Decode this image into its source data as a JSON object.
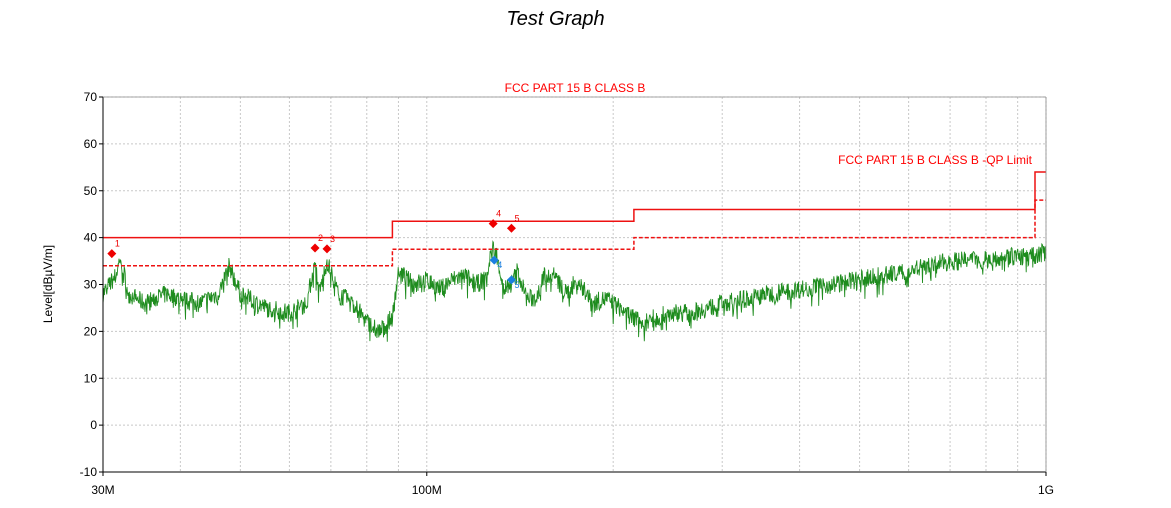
{
  "chart_data": {
    "type": "line",
    "title": "Test Graph",
    "subtitle": "FCC PART 15 B CLASS B",
    "ylabel": "Level[dBµV/m]",
    "xlabel": "",
    "x_scale": "log",
    "xlim": [
      30000000,
      1000000000
    ],
    "ylim": [
      -10,
      70
    ],
    "y_ticks": [
      70,
      60,
      50,
      40,
      30,
      20,
      10,
      0,
      -10
    ],
    "y_tick_labels": [
      "70",
      "60",
      "50",
      "40",
      "30",
      "20",
      "10",
      "0",
      "-10"
    ],
    "x_tick_labels": [
      {
        "value": 30000000,
        "label": "30M"
      },
      {
        "value": 100000000,
        "label": "100M"
      },
      {
        "value": 1000000000,
        "label": "1G"
      }
    ],
    "grid": true,
    "colors": {
      "limit": "#ee1111",
      "trace": "#1e8c1e",
      "peak_marker": "#ee0000",
      "qp_marker": "#1a7fe0",
      "grid": "#c8c8c8",
      "axis": "#000000"
    },
    "limits": [
      {
        "name": "FCC PART 15 B CLASS B -QP Limit",
        "style": "solid",
        "points": [
          [
            30000000,
            40
          ],
          [
            88000000,
            40
          ],
          [
            88000000,
            43.5
          ],
          [
            216000000,
            43.5
          ],
          [
            216000000,
            46
          ],
          [
            960000000,
            46
          ],
          [
            960000000,
            54
          ],
          [
            1000000000,
            54
          ]
        ]
      },
      {
        "name": "",
        "style": "dashed",
        "points": [
          [
            30000000,
            34
          ],
          [
            88000000,
            34
          ],
          [
            88000000,
            37.5
          ],
          [
            216000000,
            37.5
          ],
          [
            216000000,
            40
          ],
          [
            960000000,
            40
          ],
          [
            960000000,
            48
          ],
          [
            1000000000,
            48
          ]
        ]
      }
    ],
    "trace_envelope": [
      [
        30000000,
        28
      ],
      [
        31500000,
        32
      ],
      [
        32000000,
        36
      ],
      [
        33000000,
        28
      ],
      [
        35000000,
        26
      ],
      [
        38000000,
        28
      ],
      [
        40000000,
        27
      ],
      [
        43000000,
        26
      ],
      [
        46000000,
        28
      ],
      [
        48000000,
        34
      ],
      [
        50000000,
        28
      ],
      [
        55000000,
        25
      ],
      [
        60000000,
        24
      ],
      [
        64000000,
        26
      ],
      [
        66000000,
        35
      ],
      [
        67000000,
        28
      ],
      [
        69000000,
        35
      ],
      [
        72000000,
        28
      ],
      [
        76000000,
        26
      ],
      [
        80000000,
        22
      ],
      [
        84000000,
        20
      ],
      [
        88000000,
        23
      ],
      [
        90000000,
        33
      ],
      [
        95000000,
        30
      ],
      [
        100000000,
        31
      ],
      [
        105000000,
        29
      ],
      [
        110000000,
        31
      ],
      [
        115000000,
        32
      ],
      [
        120000000,
        30
      ],
      [
        124000000,
        31
      ],
      [
        128000000,
        38
      ],
      [
        130000000,
        36
      ],
      [
        133000000,
        29
      ],
      [
        137000000,
        30
      ],
      [
        140000000,
        33
      ],
      [
        145000000,
        27
      ],
      [
        150000000,
        27
      ],
      [
        155000000,
        32
      ],
      [
        160000000,
        32
      ],
      [
        168000000,
        28
      ],
      [
        175000000,
        31
      ],
      [
        185000000,
        26
      ],
      [
        195000000,
        27
      ],
      [
        205000000,
        25
      ],
      [
        215000000,
        23
      ],
      [
        225000000,
        22
      ],
      [
        235000000,
        23
      ],
      [
        250000000,
        24
      ],
      [
        270000000,
        24
      ],
      [
        300000000,
        26
      ],
      [
        330000000,
        27
      ],
      [
        360000000,
        28
      ],
      [
        400000000,
        29
      ],
      [
        450000000,
        30
      ],
      [
        500000000,
        31
      ],
      [
        550000000,
        32
      ],
      [
        600000000,
        33
      ],
      [
        650000000,
        34
      ],
      [
        700000000,
        35
      ],
      [
        750000000,
        35
      ],
      [
        800000000,
        35.5
      ],
      [
        850000000,
        36
      ],
      [
        900000000,
        36
      ],
      [
        950000000,
        36
      ],
      [
        1000000000,
        37
      ]
    ],
    "peak_markers": [
      {
        "label": "1",
        "x": 31000000,
        "y": 36.6
      },
      {
        "label": "2",
        "x": 66000000,
        "y": 37.8
      },
      {
        "label": "3",
        "x": 69000000,
        "y": 37.6
      },
      {
        "label": "4",
        "x": 128000000,
        "y": 43
      },
      {
        "label": "5",
        "x": 137000000,
        "y": 42
      }
    ],
    "qp_markers": [
      {
        "label": "4",
        "x": 128500000,
        "y": 35.2
      },
      {
        "label": "5",
        "x": 137000000,
        "y": 31
      }
    ]
  }
}
